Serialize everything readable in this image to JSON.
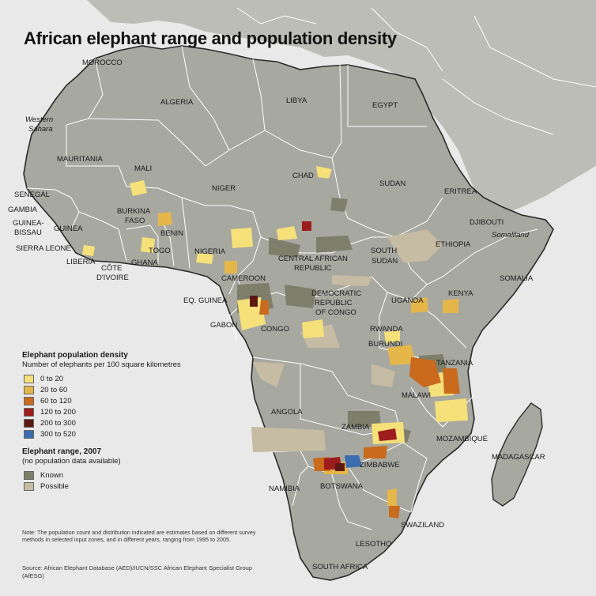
{
  "title": "African elephant range and population density",
  "colors": {
    "land": "#a7a8a0",
    "land_other": "#bcbdb6",
    "water": "#e9e9e9",
    "border": "#ffffff",
    "coast": "#2b2b2b",
    "d0_20": "#f5e07a",
    "d20_60": "#e5b64a",
    "d60_120": "#c96a1d",
    "d120_200": "#9d1d1d",
    "d200_300": "#5a1a10",
    "d300_520": "#3c6db0",
    "known": "#7e7f6b",
    "possible": "#c6bba3"
  },
  "countries": {
    "morocco": "MOROCCO",
    "algeria": "ALGERIA",
    "libya": "LIBYA",
    "egypt": "EGYPT",
    "western_sahara_1": "Western",
    "western_sahara_2": "Sahara",
    "mauritania": "MAURITANIA",
    "mali": "MALI",
    "niger": "NIGER",
    "chad": "CHAD",
    "sudan": "SUDAN",
    "eritrea": "ERITREA",
    "djibouti": "DJIBOUTI",
    "somaliland": "Somaliland",
    "senegal": "SENEGAL",
    "gambia": "GAMBIA",
    "guinea_bissau_1": "GUINEA-",
    "guinea_bissau_2": "BISSAU",
    "guinea": "GUINEA",
    "sierra_leone": "SIERRA LEONE",
    "liberia": "LIBERIA",
    "cote_1": "CÔTE",
    "cote_2": "D'IVOIRE",
    "burkina_1": "BURKINA",
    "burkina_2": "FASO",
    "ghana": "GHANA",
    "togo": "TOGO",
    "benin": "BENIN",
    "nigeria": "NIGERIA",
    "cameroon": "CAMEROON",
    "car_1": "CENTRAL AFRICAN",
    "car_2": "REPUBLIC",
    "south_sudan_1": "SOUTH",
    "south_sudan_2": "SUDAN",
    "ethiopia": "ETHIOPIA",
    "somalia": "SOMALIA",
    "eq_guinea": "EQ. GUINEA",
    "gabon": "GABON",
    "congo": "CONGO",
    "drc_1": "DEMOCRATIC",
    "drc_2": "REPUBLIC",
    "drc_3": "OF CONGO",
    "uganda": "UGANDA",
    "kenya": "KENYA",
    "rwanda": "RWANDA",
    "burundi": "BURUNDI",
    "tanzania": "TANZANIA",
    "angola": "ANGOLA",
    "malawi": "MALAWI",
    "zambia": "ZAMBIA",
    "mozambique": "MOZAMBIQUE",
    "madagascar": "MADAGASCAR",
    "zimbabwe": "ZIMBABWE",
    "namibia": "NAMIBIA",
    "botswana": "BOTSWANA",
    "swaziland": "SWAZILAND",
    "lesotho": "LESOTHO",
    "south_africa": "SOUTH AFRICA"
  },
  "legend": {
    "density_title": "Elephant population density",
    "density_subtitle": "Number of elephants per 100 square kilometres",
    "density_items": [
      {
        "label": "0 to 20",
        "color": "#f5e07a"
      },
      {
        "label": "20  to 60",
        "color": "#e5b64a"
      },
      {
        "label": "60 to 120",
        "color": "#c96a1d"
      },
      {
        "label": "120 to 200",
        "color": "#9d1d1d"
      },
      {
        "label": "200 to 300",
        "color": "#5a1a10"
      },
      {
        "label": "300 to 520",
        "color": "#3c6db0"
      }
    ],
    "range_title": "Elephant range,  2007",
    "range_subtitle": "(no population data available)",
    "range_items": [
      {
        "label": "Known",
        "color": "#7e7f6b"
      },
      {
        "label": "Possible",
        "color": "#c6bba3"
      }
    ]
  },
  "note": "Note: The population count and distribution indicated are estimates based on different survey methods in selected input zones, and in different years, ranging from 1995 to 2005.",
  "source": "Source: African Elephant Database (AED)/IUCN/SSC African Elephant Specialist Group (AfESG)"
}
